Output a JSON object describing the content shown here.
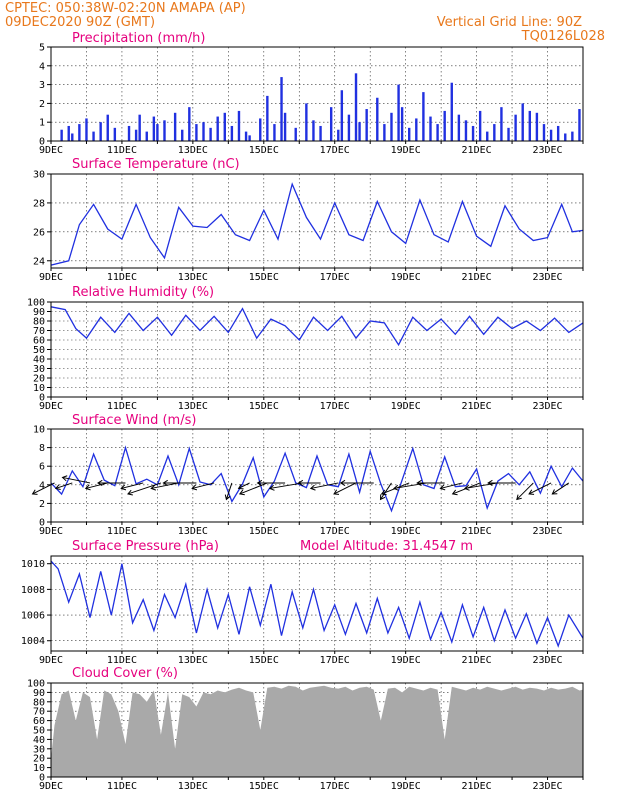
{
  "header": {
    "line1": "CPTEC:   050:38W-02:20N   AMAPA (AP)",
    "line2": "09DEC2020 90Z (GMT)",
    "right1": "Vertical Grid Line: 90Z",
    "right2": "TQ0126L028"
  },
  "colors": {
    "series": "#2030e0",
    "header": "#e8781c",
    "title": "#e6007e",
    "cloud": "#a9a9a9",
    "arrow": "#000000"
  },
  "xaxis": {
    "labels": [
      "9DEC",
      "11DEC",
      "13DEC",
      "15DEC",
      "17DEC",
      "19DEC",
      "21DEC",
      "23DEC"
    ],
    "start_day": 9,
    "end_day": 24
  },
  "chart_data": [
    {
      "type": "bar",
      "title": "Precipitation (mm/h)",
      "ylim": [
        0,
        5
      ],
      "yticks": [
        "0",
        "1",
        "2",
        "3",
        "4",
        "5"
      ],
      "x_days": [
        9.3,
        9.5,
        9.6,
        9.8,
        10.0,
        10.2,
        10.4,
        10.6,
        10.8,
        11.2,
        11.4,
        11.5,
        11.7,
        11.9,
        12.0,
        12.2,
        12.5,
        12.7,
        12.9,
        13.1,
        13.3,
        13.5,
        13.7,
        13.9,
        14.1,
        14.3,
        14.5,
        14.6,
        14.9,
        15.1,
        15.3,
        15.5,
        15.6,
        15.9,
        16.2,
        16.4,
        16.6,
        16.9,
        17.1,
        17.2,
        17.4,
        17.6,
        17.7,
        17.9,
        18.2,
        18.4,
        18.6,
        18.8,
        18.9,
        19.1,
        19.3,
        19.5,
        19.7,
        19.9,
        20.1,
        20.3,
        20.5,
        20.7,
        20.9,
        21.1,
        21.3,
        21.5,
        21.7,
        21.9,
        22.1,
        22.3,
        22.5,
        22.7,
        22.9,
        23.1,
        23.3,
        23.5,
        23.7,
        23.9
      ],
      "values": [
        0.6,
        0.8,
        0.4,
        0.9,
        1.2,
        0.5,
        1.0,
        1.4,
        0.7,
        0.8,
        0.6,
        1.4,
        0.5,
        1.3,
        0.9,
        1.1,
        1.5,
        0.6,
        1.8,
        0.9,
        1.0,
        0.7,
        1.3,
        1.5,
        0.8,
        1.6,
        0.5,
        0.3,
        1.2,
        2.4,
        0.9,
        3.4,
        1.5,
        0.7,
        2.0,
        1.1,
        0.8,
        1.8,
        0.6,
        2.7,
        1.4,
        3.6,
        1.0,
        1.7,
        2.3,
        0.9,
        1.5,
        3.0,
        1.8,
        0.7,
        1.2,
        2.6,
        1.3,
        0.9,
        1.6,
        3.1,
        1.4,
        1.1,
        0.8,
        1.6,
        0.5,
        0.9,
        1.8,
        0.7,
        1.4,
        2.0,
        1.6,
        1.5,
        0.9,
        0.6,
        0.8,
        0.4,
        0.5,
        1.7
      ]
    },
    {
      "type": "line",
      "title": "Surface Temperature (nC)",
      "ylim": [
        23.5,
        30
      ],
      "yticks": [
        "24",
        "26",
        "28",
        "30"
      ],
      "ytick_values": [
        24,
        26,
        28,
        30
      ],
      "x_days": [
        9.0,
        9.5,
        9.8,
        10.2,
        10.6,
        11.0,
        11.4,
        11.8,
        12.2,
        12.6,
        13.0,
        13.4,
        13.8,
        14.2,
        14.6,
        15.0,
        15.4,
        15.8,
        16.2,
        16.6,
        17.0,
        17.4,
        17.8,
        18.2,
        18.6,
        19.0,
        19.4,
        19.8,
        20.2,
        20.6,
        21.0,
        21.4,
        21.8,
        22.2,
        22.6,
        23.0,
        23.4,
        23.7,
        24.0
      ],
      "values": [
        23.7,
        24.0,
        26.5,
        27.9,
        26.2,
        25.5,
        27.9,
        25.6,
        24.2,
        27.7,
        26.4,
        26.3,
        27.2,
        25.8,
        25.4,
        27.5,
        25.5,
        29.3,
        27.0,
        25.5,
        28.0,
        25.8,
        25.4,
        28.1,
        26.0,
        25.2,
        28.2,
        25.8,
        25.3,
        28.1,
        25.7,
        25.0,
        27.8,
        26.2,
        25.4,
        25.6,
        27.9,
        26.0,
        26.1
      ]
    },
    {
      "type": "line",
      "title": "Relative Humidity (%)",
      "ylim": [
        0,
        100
      ],
      "yticks": [
        "0",
        "10",
        "20",
        "30",
        "40",
        "50",
        "60",
        "70",
        "80",
        "90",
        "100"
      ],
      "ytick_values": [
        0,
        10,
        20,
        30,
        40,
        50,
        60,
        70,
        80,
        90,
        100
      ],
      "x_days": [
        9.0,
        9.4,
        9.7,
        10.0,
        10.4,
        10.8,
        11.2,
        11.6,
        12.0,
        12.4,
        12.8,
        13.2,
        13.6,
        14.0,
        14.4,
        14.8,
        15.2,
        15.6,
        16.0,
        16.4,
        16.8,
        17.2,
        17.6,
        18.0,
        18.4,
        18.8,
        19.2,
        19.6,
        20.0,
        20.4,
        20.8,
        21.2,
        21.6,
        22.0,
        22.4,
        22.8,
        23.2,
        23.6,
        24.0
      ],
      "values": [
        95,
        92,
        72,
        62,
        84,
        68,
        88,
        70,
        84,
        65,
        86,
        70,
        85,
        68,
        93,
        62,
        82,
        75,
        60,
        84,
        70,
        85,
        62,
        80,
        78,
        55,
        84,
        70,
        82,
        66,
        85,
        66,
        84,
        72,
        80,
        70,
        83,
        68,
        78
      ]
    },
    {
      "type": "line",
      "title": "Surface Wind (m/s)",
      "ylim": [
        0,
        10
      ],
      "yticks": [
        "0",
        "2",
        "4",
        "6",
        "8",
        "10"
      ],
      "ytick_values": [
        0,
        2,
        4,
        6,
        8,
        10
      ],
      "x_days": [
        9.0,
        9.3,
        9.6,
        9.9,
        10.2,
        10.5,
        10.8,
        11.1,
        11.4,
        11.7,
        12.0,
        12.3,
        12.6,
        12.9,
        13.2,
        13.5,
        13.8,
        14.1,
        14.4,
        14.7,
        15.0,
        15.3,
        15.6,
        15.9,
        16.2,
        16.5,
        16.8,
        17.1,
        17.4,
        17.7,
        18.0,
        18.3,
        18.6,
        18.9,
        19.2,
        19.5,
        19.8,
        20.1,
        20.4,
        20.7,
        21.0,
        21.3,
        21.6,
        21.9,
        22.2,
        22.5,
        22.8,
        23.1,
        23.4,
        23.7,
        24.0
      ],
      "values": [
        4.2,
        3.0,
        5.5,
        3.8,
        7.3,
        4.5,
        3.9,
        8.0,
        4.1,
        4.6,
        4.0,
        7.1,
        4.0,
        7.9,
        4.3,
        4.0,
        5.2,
        2.2,
        4.1,
        6.9,
        2.7,
        4.4,
        7.4,
        4.2,
        3.7,
        7.1,
        4.0,
        3.8,
        7.3,
        3.2,
        7.6,
        4.1,
        1.2,
        4.5,
        7.9,
        4.0,
        3.6,
        7.0,
        3.8,
        3.9,
        5.7,
        1.5,
        4.4,
        5.2,
        4.0,
        5.4,
        3.1,
        6.0,
        3.8,
        5.8,
        4.4
      ]
    },
    {
      "type": "line",
      "title": "Surface Pressure (hPa)",
      "annotation": "Model Altitude: 31.4547 m",
      "ylim": [
        1003.2,
        1010.6
      ],
      "yticks": [
        "1004",
        "1006",
        "1008",
        "1010"
      ],
      "ytick_values": [
        1004,
        1006,
        1008,
        1010
      ],
      "x_days": [
        9.0,
        9.2,
        9.5,
        9.8,
        10.1,
        10.4,
        10.7,
        11.0,
        11.3,
        11.6,
        11.9,
        12.2,
        12.5,
        12.8,
        13.1,
        13.4,
        13.7,
        14.0,
        14.3,
        14.6,
        14.9,
        15.2,
        15.5,
        15.8,
        16.1,
        16.4,
        16.7,
        17.0,
        17.3,
        17.6,
        17.9,
        18.2,
        18.5,
        18.8,
        19.1,
        19.4,
        19.7,
        20.0,
        20.3,
        20.6,
        20.9,
        21.2,
        21.5,
        21.8,
        22.1,
        22.4,
        22.7,
        23.0,
        23.3,
        23.6,
        24.0
      ],
      "values": [
        1010.2,
        1009.6,
        1007.0,
        1009.2,
        1005.8,
        1009.4,
        1006.0,
        1010.0,
        1005.4,
        1007.2,
        1004.8,
        1007.6,
        1005.8,
        1008.4,
        1004.6,
        1008.0,
        1005.0,
        1007.6,
        1004.5,
        1008.2,
        1005.2,
        1008.4,
        1004.4,
        1007.8,
        1005.0,
        1008.0,
        1004.8,
        1006.8,
        1004.5,
        1006.9,
        1004.6,
        1007.3,
        1004.6,
        1006.6,
        1004.2,
        1007.0,
        1004.1,
        1006.2,
        1003.9,
        1006.8,
        1004.3,
        1006.6,
        1004.0,
        1006.4,
        1004.2,
        1006.1,
        1003.8,
        1005.8,
        1003.6,
        1006.0,
        1004.2
      ]
    },
    {
      "type": "area",
      "title": "Cloud Cover (%)",
      "ylim": [
        0,
        100
      ],
      "yticks": [
        "0",
        "10",
        "20",
        "30",
        "40",
        "50",
        "60",
        "70",
        "80",
        "90",
        "100"
      ],
      "ytick_values": [
        0,
        10,
        20,
        30,
        40,
        50,
        60,
        70,
        80,
        90,
        100
      ],
      "x_days": [
        9.0,
        9.1,
        9.3,
        9.5,
        9.7,
        9.9,
        10.1,
        10.3,
        10.5,
        10.7,
        10.9,
        11.1,
        11.3,
        11.5,
        11.7,
        11.9,
        12.1,
        12.3,
        12.5,
        12.7,
        12.9,
        13.1,
        13.3,
        13.5,
        13.7,
        13.9,
        14.1,
        14.3,
        14.5,
        14.7,
        14.9,
        15.1,
        15.3,
        15.5,
        15.7,
        15.9,
        16.1,
        16.3,
        16.5,
        16.7,
        16.9,
        17.1,
        17.3,
        17.5,
        17.7,
        17.9,
        18.1,
        18.3,
        18.5,
        18.7,
        18.9,
        19.1,
        19.3,
        19.5,
        19.7,
        19.9,
        20.1,
        20.3,
        20.5,
        20.7,
        20.9,
        21.1,
        21.3,
        21.5,
        21.7,
        21.9,
        22.1,
        22.3,
        22.5,
        22.7,
        22.9,
        23.1,
        23.3,
        23.5,
        23.7,
        23.9,
        24.0
      ],
      "values": [
        20,
        55,
        88,
        92,
        60,
        90,
        85,
        40,
        92,
        88,
        70,
        35,
        90,
        88,
        80,
        92,
        45,
        90,
        30,
        88,
        85,
        75,
        90,
        88,
        92,
        90,
        93,
        95,
        92,
        90,
        50,
        95,
        96,
        94,
        97,
        96,
        92,
        95,
        96,
        97,
        95,
        94,
        96,
        92,
        95,
        96,
        93,
        60,
        94,
        95,
        90,
        96,
        94,
        92,
        95,
        93,
        40,
        96,
        94,
        92,
        95,
        93,
        96,
        94,
        92,
        94,
        96,
        93,
        95,
        94,
        92,
        95,
        93,
        94,
        96,
        92,
        93
      ]
    }
  ],
  "wind_arrows": {
    "x_days": [
      9.1,
      9.6,
      10.1,
      10.6,
      11.1,
      11.6,
      12.1,
      12.6,
      13.1,
      13.6,
      14.1,
      14.6,
      15.1,
      15.6,
      16.1,
      16.6,
      17.1,
      17.6,
      18.1,
      18.6,
      19.1,
      19.6,
      20.1,
      20.6,
      21.1,
      21.6,
      22.1,
      22.6,
      23.1,
      23.6
    ],
    "u": [
      -4,
      -3,
      -5,
      -4,
      -5,
      -4,
      -6,
      -5,
      -6,
      -4,
      -1,
      -2,
      -5,
      -5,
      -6,
      -4,
      -5,
      -4,
      -6,
      -2,
      -5,
      -6,
      -5,
      -4,
      -5,
      -6,
      -5,
      -3,
      -4,
      -3
    ],
    "v": [
      -2,
      -1,
      1,
      -1,
      0,
      -1,
      -2,
      -1,
      0,
      -1,
      -3,
      -1,
      -2,
      0,
      -1,
      0,
      -1,
      -2,
      0,
      -3,
      -2,
      -1,
      0,
      -1,
      -2,
      -1,
      0,
      -3,
      -2,
      -2
    ]
  }
}
